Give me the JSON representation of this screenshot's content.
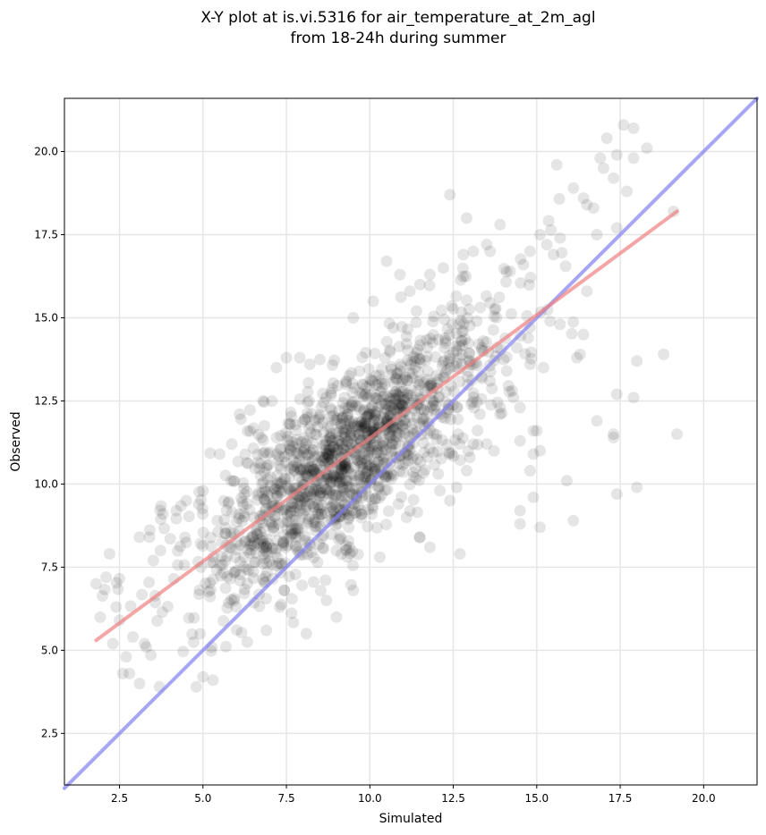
{
  "chart_data": {
    "type": "scatter",
    "title_lines": [
      "X-Y plot at is.vi.5316 for air_temperature_at_2m_agl",
      "from 18-24h during summer"
    ],
    "xlabel": "Simulated",
    "ylabel": "Observed",
    "xlim": [
      0.85,
      21.6
    ],
    "ylim": [
      0.95,
      21.6
    ],
    "xticks": [
      2.5,
      5.0,
      7.5,
      10.0,
      12.5,
      15.0,
      17.5,
      20.0
    ],
    "xtick_labels": [
      "2.5",
      "5.0",
      "7.5",
      "10.0",
      "12.5",
      "15.0",
      "17.5",
      "20.0"
    ],
    "yticks": [
      2.5,
      5.0,
      7.5,
      10.0,
      12.5,
      15.0,
      17.5,
      20.0
    ],
    "ytick_labels": [
      "2.5",
      "5.0",
      "7.5",
      "10.0",
      "12.5",
      "15.0",
      "17.5",
      "20.0"
    ],
    "grid": true,
    "point_color": "#000000",
    "point_alpha": 0.1,
    "fit_line": {
      "color": "#f08080",
      "x": [
        1.8,
        19.2
      ],
      "y": [
        5.3,
        18.2
      ]
    },
    "identity_line": {
      "color": "#8080f0",
      "x": [
        0.85,
        21.6
      ],
      "y": [
        0.85,
        21.6
      ]
    },
    "points_outliers": [
      [
        1.8,
        7.0
      ],
      [
        2.1,
        7.2
      ],
      [
        2.2,
        7.9
      ],
      [
        2.4,
        6.3
      ],
      [
        2.3,
        5.2
      ],
      [
        2.5,
        5.9
      ],
      [
        2.6,
        4.3
      ],
      [
        2.8,
        4.3
      ],
      [
        2.9,
        5.4
      ],
      [
        3.1,
        4.0
      ],
      [
        3.3,
        5.1
      ],
      [
        3.7,
        3.9
      ],
      [
        2.7,
        4.8
      ],
      [
        4.8,
        3.9
      ],
      [
        5.0,
        4.2
      ],
      [
        5.3,
        4.1
      ],
      [
        3.1,
        8.4
      ],
      [
        3.4,
        8.4
      ],
      [
        3.8,
        9.1
      ],
      [
        4.2,
        9.2
      ],
      [
        4.5,
        9.5
      ],
      [
        5.0,
        9.8
      ],
      [
        5.5,
        10.9
      ],
      [
        6.1,
        12.1
      ],
      [
        6.8,
        12.5
      ],
      [
        7.5,
        13.8
      ],
      [
        7.2,
        13.5
      ],
      [
        7.9,
        13.8
      ],
      [
        8.2,
        13.6
      ],
      [
        6.9,
        5.6
      ],
      [
        7.3,
        6.3
      ],
      [
        8.1,
        5.5
      ],
      [
        9.0,
        6.0
      ],
      [
        9.5,
        6.8
      ],
      [
        8.7,
        6.5
      ],
      [
        10.3,
        7.8
      ],
      [
        10.5,
        16.7
      ],
      [
        10.9,
        16.3
      ],
      [
        11.5,
        16.0
      ],
      [
        11.8,
        16.3
      ],
      [
        12.2,
        16.5
      ],
      [
        12.4,
        18.7
      ],
      [
        12.8,
        16.9
      ],
      [
        13.1,
        17.0
      ],
      [
        12.9,
        18.0
      ],
      [
        13.5,
        17.2
      ],
      [
        13.9,
        17.8
      ],
      [
        13.6,
        17.0
      ],
      [
        14.2,
        16.4
      ],
      [
        14.6,
        16.6
      ],
      [
        14.8,
        17.0
      ],
      [
        15.1,
        17.5
      ],
      [
        15.3,
        17.2
      ],
      [
        15.5,
        16.9
      ],
      [
        15.7,
        17.4
      ],
      [
        15.6,
        19.6
      ],
      [
        16.1,
        18.9
      ],
      [
        16.5,
        18.4
      ],
      [
        16.7,
        18.3
      ],
      [
        16.4,
        18.6
      ],
      [
        16.9,
        19.8
      ],
      [
        17.1,
        20.4
      ],
      [
        17.4,
        19.9
      ],
      [
        17.6,
        20.8
      ],
      [
        17.9,
        20.7
      ],
      [
        18.3,
        20.1
      ],
      [
        17.3,
        19.2
      ],
      [
        17.0,
        19.5
      ],
      [
        17.9,
        19.8
      ],
      [
        17.7,
        18.8
      ],
      [
        17.4,
        17.7
      ],
      [
        16.8,
        17.5
      ],
      [
        16.5,
        15.8
      ],
      [
        15.4,
        14.9
      ],
      [
        15.7,
        14.8
      ],
      [
        16.4,
        14.5
      ],
      [
        16.2,
        13.8
      ],
      [
        16.3,
        13.9
      ],
      [
        15.2,
        13.5
      ],
      [
        14.8,
        13.6
      ],
      [
        14.5,
        12.3
      ],
      [
        14.3,
        12.6
      ],
      [
        14.1,
        13.4
      ],
      [
        14.4,
        14.1
      ],
      [
        13.9,
        12.3
      ],
      [
        13.6,
        13.1
      ],
      [
        13.4,
        14.0
      ],
      [
        13.3,
        12.1
      ],
      [
        13.1,
        11.2
      ],
      [
        13.0,
        10.8
      ],
      [
        12.9,
        10.4
      ],
      [
        12.6,
        9.9
      ],
      [
        12.4,
        9.5
      ],
      [
        12.7,
        7.9
      ],
      [
        12.1,
        9.8
      ],
      [
        11.8,
        8.1
      ],
      [
        11.5,
        8.4
      ],
      [
        11.1,
        9.0
      ],
      [
        13.5,
        11.2
      ],
      [
        13.9,
        12.1
      ],
      [
        14.5,
        11.3
      ],
      [
        14.8,
        10.4
      ],
      [
        14.9,
        11.6
      ],
      [
        15.0,
        11.6
      ],
      [
        15.1,
        11.0
      ],
      [
        14.9,
        10.9
      ],
      [
        14.5,
        9.2
      ],
      [
        14.5,
        8.8
      ],
      [
        14.9,
        9.6
      ],
      [
        15.1,
        8.7
      ],
      [
        15.9,
        10.1
      ],
      [
        16.1,
        8.9
      ],
      [
        16.8,
        11.9
      ],
      [
        17.3,
        11.4
      ],
      [
        17.4,
        12.7
      ],
      [
        17.4,
        9.7
      ],
      [
        17.9,
        12.6
      ],
      [
        18.0,
        13.7
      ],
      [
        18.0,
        9.9
      ],
      [
        18.8,
        13.9
      ],
      [
        19.2,
        11.5
      ],
      [
        19.1,
        18.2
      ],
      [
        17.3,
        11.5
      ],
      [
        13.4,
        14.3
      ],
      [
        12.8,
        14.6
      ],
      [
        11.2,
        15.8
      ],
      [
        10.1,
        15.5
      ],
      [
        9.5,
        15.0
      ],
      [
        10.7,
        14.7
      ],
      [
        11.4,
        15.2
      ]
    ],
    "cluster": {
      "n": 1500,
      "x_mean": 9.2,
      "x_sd": 2.3,
      "slope": 0.74,
      "intercept": 3.95,
      "y_sd": 1.3,
      "seed": 5316
    }
  }
}
